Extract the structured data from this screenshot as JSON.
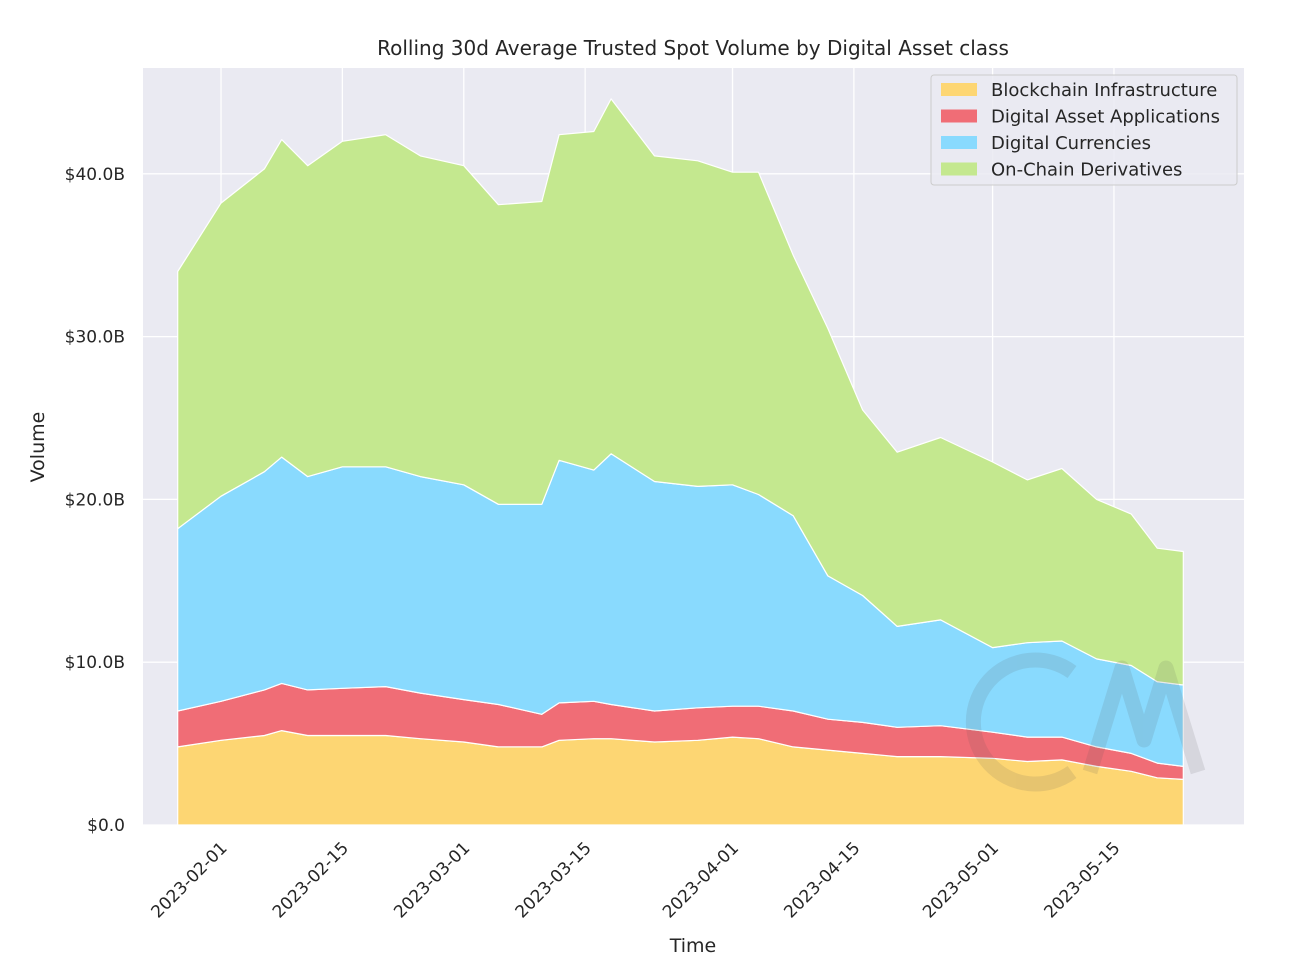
{
  "chart_data": {
    "type": "area",
    "stacked": true,
    "title": "Rolling 30d Average Trusted Spot Volume by Digital Asset class",
    "xlabel": "Time",
    "ylabel": "Volume",
    "ylim": [
      0,
      46.5
    ],
    "yticks": [
      0,
      10,
      20,
      30,
      40
    ],
    "ytick_labels": [
      "$0.0",
      "$10.0B",
      "$20.0B",
      "$30.0B",
      "$40.0B"
    ],
    "xlim": [
      "2023-01-23",
      "2023-05-30"
    ],
    "xticks": [
      "2023-02-01",
      "2023-02-15",
      "2023-03-01",
      "2023-03-15",
      "2023-04-01",
      "2023-04-15",
      "2023-05-01",
      "2023-05-15"
    ],
    "grid": true,
    "legend_position": "top-right",
    "watermark": "CM",
    "units": "USD billions",
    "dates": [
      "2023-01-27",
      "2023-02-01",
      "2023-02-06",
      "2023-02-08",
      "2023-02-11",
      "2023-02-15",
      "2023-02-20",
      "2023-02-24",
      "2023-03-01",
      "2023-03-05",
      "2023-03-10",
      "2023-03-12",
      "2023-03-16",
      "2023-03-18",
      "2023-03-23",
      "2023-03-28",
      "2023-04-01",
      "2023-04-04",
      "2023-04-08",
      "2023-04-12",
      "2023-04-16",
      "2023-04-20",
      "2023-04-25",
      "2023-05-01",
      "2023-05-05",
      "2023-05-09",
      "2023-05-13",
      "2023-05-17",
      "2023-05-20",
      "2023-05-23"
    ],
    "series": [
      {
        "name": "Blockchain Infrastructure",
        "color": "#fdd673",
        "values": [
          4.8,
          5.2,
          5.5,
          5.8,
          5.5,
          5.5,
          5.5,
          5.3,
          5.1,
          4.8,
          4.8,
          5.2,
          5.3,
          5.3,
          5.1,
          5.2,
          5.4,
          5.3,
          4.8,
          4.6,
          4.4,
          4.2,
          4.2,
          4.1,
          3.9,
          4.0,
          3.6,
          3.3,
          2.9,
          2.8
        ]
      },
      {
        "name": "Digital Asset Applications",
        "color": "#f06d76",
        "values": [
          2.2,
          2.4,
          2.8,
          2.9,
          2.8,
          2.9,
          3.0,
          2.8,
          2.6,
          2.6,
          2.0,
          2.3,
          2.3,
          2.1,
          1.9,
          2.0,
          1.9,
          2.0,
          2.2,
          1.9,
          1.9,
          1.8,
          1.9,
          1.6,
          1.5,
          1.4,
          1.2,
          1.1,
          0.9,
          0.8
        ]
      },
      {
        "name": "Digital Currencies",
        "color": "#89dafe",
        "values": [
          11.2,
          12.6,
          13.4,
          13.9,
          13.1,
          13.6,
          13.5,
          13.3,
          13.2,
          12.3,
          12.9,
          14.9,
          14.2,
          15.4,
          14.1,
          13.6,
          13.6,
          13.0,
          12.0,
          8.8,
          7.8,
          6.2,
          6.5,
          5.2,
          5.8,
          5.9,
          5.4,
          5.4,
          5.0,
          5.0
        ]
      },
      {
        "name": "On-Chain Derivatives",
        "color": "#c4e88f",
        "values": [
          15.8,
          18.0,
          18.6,
          19.5,
          19.1,
          20.0,
          20.4,
          19.7,
          19.6,
          18.4,
          18.6,
          20.0,
          20.8,
          21.8,
          20.0,
          20.0,
          19.2,
          19.8,
          16.0,
          15.2,
          11.4,
          10.7,
          11.2,
          11.4,
          10.0,
          10.6,
          9.8,
          9.3,
          8.2,
          8.2
        ]
      }
    ]
  }
}
